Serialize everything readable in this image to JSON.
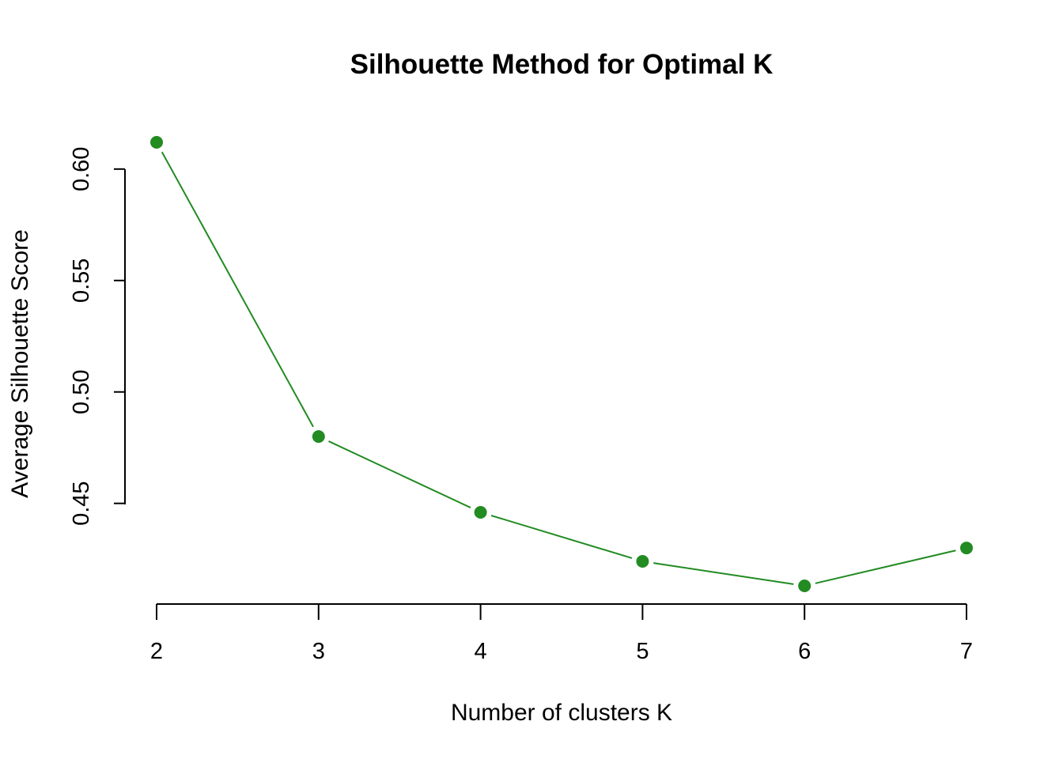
{
  "chart_data": {
    "type": "line",
    "title": "Silhouette Method for Optimal K",
    "xlabel": "Number of clusters K",
    "ylabel": "Average Silhouette Score",
    "x": [
      2,
      3,
      4,
      5,
      6,
      7
    ],
    "series": [
      {
        "values": [
          0.612,
          0.48,
          0.446,
          0.424,
          0.413,
          0.43
        ],
        "color": "#228B22"
      }
    ],
    "x_ticks": [
      "2",
      "3",
      "4",
      "5",
      "6",
      "7"
    ],
    "y_ticks": [
      "0.45",
      "0.50",
      "0.55",
      "0.60"
    ],
    "xlim": [
      2,
      7
    ],
    "ylim": [
      0.413,
      0.612
    ],
    "grid": false,
    "legend": "none"
  }
}
